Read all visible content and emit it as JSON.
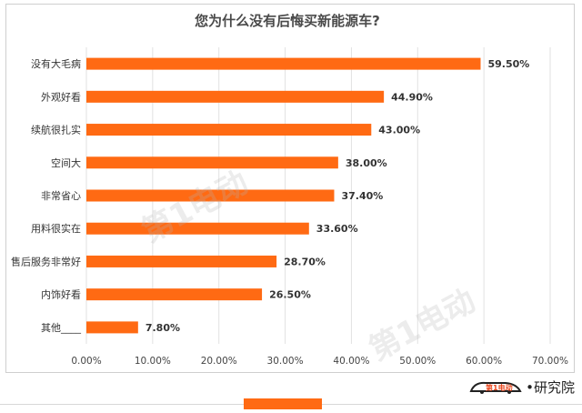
{
  "chart_data": {
    "type": "bar",
    "orientation": "horizontal",
    "title": "您为什么没有后悔买新能源车?",
    "categories": [
      "没有大毛病",
      "外观好看",
      "续航很扎实",
      "空间大",
      "非常省心",
      "用料很实在",
      "售后服务非常好",
      "内饰好看",
      "其他____"
    ],
    "values": [
      59.5,
      44.9,
      43.0,
      38.0,
      37.4,
      33.6,
      28.7,
      26.5,
      7.8
    ],
    "value_labels": [
      "59.50%",
      "44.90%",
      "43.00%",
      "38.00%",
      "37.40%",
      "33.60%",
      "28.70%",
      "26.50%",
      "7.80%"
    ],
    "xlim": [
      0,
      70
    ],
    "x_ticks": [
      "0.00%",
      "10.00%",
      "20.00%",
      "30.00%",
      "40.00%",
      "50.00%",
      "60.00%",
      "70.00%"
    ],
    "grid": true,
    "bar_color": "#ff6a13",
    "legend_color": "#ff6a13"
  },
  "brand": {
    "mark_text": "第1电动",
    "text": "•研究院"
  }
}
